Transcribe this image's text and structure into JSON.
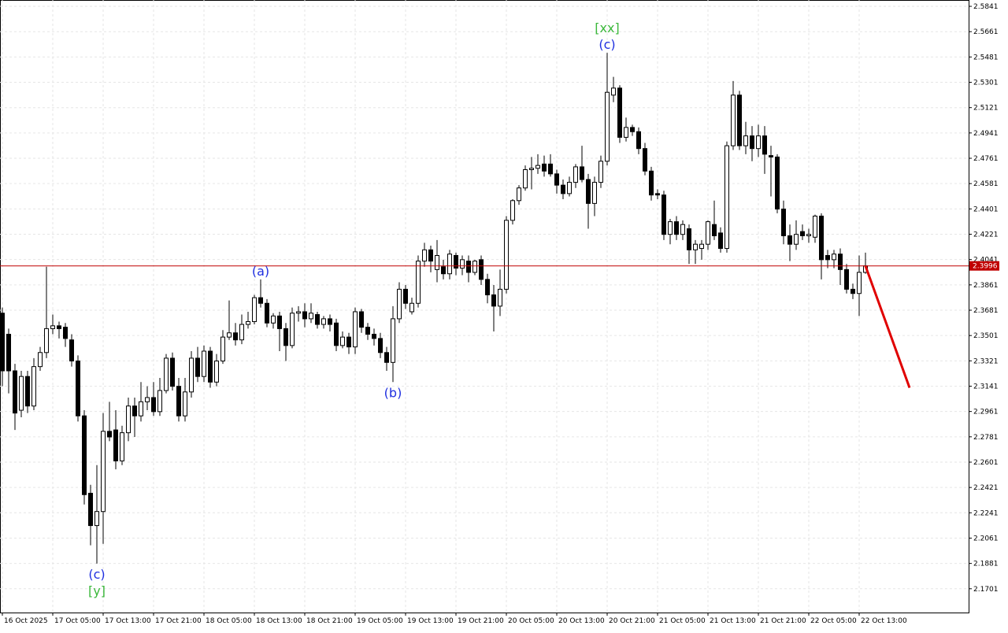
{
  "chart_data": {
    "type": "candlestick",
    "ylim": [
      2.1532,
      2.5886
    ],
    "yticks": [
      2.5841,
      2.5661,
      2.5481,
      2.5301,
      2.5121,
      2.4941,
      2.4761,
      2.4581,
      2.4401,
      2.4221,
      2.4041,
      2.3861,
      2.3681,
      2.3501,
      2.3321,
      2.3141,
      2.2961,
      2.2781,
      2.2601,
      2.2421,
      2.2241,
      2.2061,
      2.1881,
      2.1701
    ],
    "grid": true,
    "xtick_labels": [
      "16 Oct 2025",
      "17 Oct 05:00",
      "17 Oct 13:00",
      "17 Oct 21:00",
      "18 Oct 05:00",
      "18 Oct 13:00",
      "18 Oct 21:00",
      "19 Oct 05:00",
      "19 Oct 13:00",
      "19 Oct 21:00",
      "20 Oct 05:00",
      "20 Oct 13:00",
      "20 Oct 21:00",
      "21 Oct 05:00",
      "21 Oct 13:00",
      "21 Oct 21:00",
      "22 Oct 05:00",
      "22 Oct 13:00"
    ],
    "up_color": "#ffffff",
    "down_color": "#000000",
    "ohlc": [
      [
        2.366,
        2.37,
        2.314,
        2.325
      ],
      [
        2.351,
        2.355,
        2.309,
        2.325
      ],
      [
        2.325,
        2.33,
        2.283,
        2.295
      ],
      [
        2.297,
        2.325,
        2.292,
        2.321
      ],
      [
        2.321,
        2.325,
        2.295,
        2.3
      ],
      [
        2.3,
        2.334,
        2.297,
        2.328
      ],
      [
        2.328,
        2.342,
        2.325,
        2.338
      ],
      [
        2.338,
        2.399,
        2.334,
        2.355
      ],
      [
        2.355,
        2.365,
        2.351,
        2.357
      ],
      [
        2.357,
        2.36,
        2.348,
        2.355
      ],
      [
        2.356,
        2.359,
        2.342,
        2.348
      ],
      [
        2.347,
        2.351,
        2.328,
        2.332
      ],
      [
        2.332,
        2.336,
        2.289,
        2.293
      ],
      [
        2.293,
        2.297,
        2.23,
        2.237
      ],
      [
        2.238,
        2.244,
        2.201,
        2.215
      ],
      [
        2.215,
        2.258,
        2.188,
        2.225
      ],
      [
        2.225,
        2.295,
        2.202,
        2.282
      ],
      [
        2.282,
        2.303,
        2.275,
        2.278
      ],
      [
        2.283,
        2.297,
        2.255,
        2.261
      ],
      [
        2.261,
        2.286,
        2.258,
        2.281
      ],
      [
        2.281,
        2.306,
        2.275,
        2.3
      ],
      [
        2.3,
        2.306,
        2.278,
        2.293
      ],
      [
        2.293,
        2.317,
        2.289,
        2.303
      ],
      [
        2.303,
        2.314,
        2.297,
        2.306
      ],
      [
        2.306,
        2.317,
        2.293,
        2.296
      ],
      [
        2.296,
        2.32,
        2.293,
        2.311
      ],
      [
        2.311,
        2.337,
        2.309,
        2.334
      ],
      [
        2.334,
        2.338,
        2.311,
        2.314
      ],
      [
        2.314,
        2.32,
        2.289,
        2.293
      ],
      [
        2.293,
        2.32,
        2.289,
        2.31
      ],
      [
        2.31,
        2.339,
        2.306,
        2.334
      ],
      [
        2.334,
        2.342,
        2.317,
        2.321
      ],
      [
        2.321,
        2.343,
        2.317,
        2.339
      ],
      [
        2.339,
        2.342,
        2.313,
        2.317
      ],
      [
        2.317,
        2.337,
        2.314,
        2.332
      ],
      [
        2.332,
        2.354,
        2.33,
        2.349
      ],
      [
        2.349,
        2.375,
        2.347,
        2.352
      ],
      [
        2.352,
        2.359,
        2.343,
        2.347
      ],
      [
        2.347,
        2.365,
        2.344,
        2.358
      ],
      [
        2.358,
        2.367,
        2.355,
        2.36
      ],
      [
        2.36,
        2.379,
        2.358,
        2.377
      ],
      [
        2.377,
        2.39,
        2.37,
        2.373
      ],
      [
        2.373,
        2.376,
        2.356,
        2.359
      ],
      [
        2.359,
        2.366,
        2.355,
        2.364
      ],
      [
        2.364,
        2.367,
        2.339,
        2.355
      ],
      [
        2.355,
        2.359,
        2.332,
        2.343
      ],
      [
        2.343,
        2.37,
        2.341,
        2.366
      ],
      [
        2.366,
        2.371,
        2.36,
        2.367
      ],
      [
        2.367,
        2.373,
        2.356,
        2.362
      ],
      [
        2.362,
        2.373,
        2.359,
        2.366
      ],
      [
        2.365,
        2.367,
        2.355,
        2.358
      ],
      [
        2.358,
        2.364,
        2.355,
        2.362
      ],
      [
        2.362,
        2.365,
        2.353,
        2.358
      ],
      [
        2.359,
        2.362,
        2.339,
        2.343
      ],
      [
        2.343,
        2.353,
        2.341,
        2.349
      ],
      [
        2.349,
        2.352,
        2.337,
        2.342
      ],
      [
        2.342,
        2.37,
        2.337,
        2.367
      ],
      [
        2.367,
        2.369,
        2.352,
        2.356
      ],
      [
        2.356,
        2.359,
        2.347,
        2.351
      ],
      [
        2.351,
        2.355,
        2.343,
        2.348
      ],
      [
        2.348,
        2.352,
        2.334,
        2.338
      ],
      [
        2.338,
        2.342,
        2.325,
        2.331
      ],
      [
        2.331,
        2.371,
        2.317,
        2.362
      ],
      [
        2.362,
        2.388,
        2.359,
        2.383
      ],
      [
        2.383,
        2.386,
        2.369,
        2.373
      ],
      [
        2.367,
        2.377,
        2.365,
        2.373
      ],
      [
        2.373,
        2.407,
        2.37,
        2.403
      ],
      [
        2.403,
        2.416,
        2.399,
        2.411
      ],
      [
        2.411,
        2.414,
        2.395,
        2.403
      ],
      [
        2.397,
        2.418,
        2.388,
        2.407
      ],
      [
        2.399,
        2.404,
        2.39,
        2.394
      ],
      [
        2.394,
        2.411,
        2.39,
        2.408
      ],
      [
        2.407,
        2.409,
        2.393,
        2.398
      ],
      [
        2.398,
        2.407,
        2.393,
        2.404
      ],
      [
        2.403,
        2.407,
        2.388,
        2.395
      ],
      [
        2.395,
        2.404,
        2.393,
        2.403
      ],
      [
        2.404,
        2.407,
        2.386,
        2.39
      ],
      [
        2.39,
        2.394,
        2.373,
        2.379
      ],
      [
        2.379,
        2.386,
        2.353,
        2.371
      ],
      [
        2.371,
        2.397,
        2.364,
        2.383
      ],
      [
        2.383,
        2.435,
        2.38,
        2.432
      ],
      [
        2.432,
        2.447,
        2.429,
        2.446
      ],
      [
        2.446,
        2.457,
        2.443,
        2.455
      ],
      [
        2.455,
        2.471,
        2.453,
        2.468
      ],
      [
        2.468,
        2.477,
        2.454,
        2.469
      ],
      [
        2.469,
        2.479,
        2.465,
        2.471
      ],
      [
        2.472,
        2.478,
        2.463,
        2.467
      ],
      [
        2.472,
        2.479,
        2.463,
        2.465
      ],
      [
        2.465,
        2.468,
        2.451,
        2.457
      ],
      [
        2.457,
        2.461,
        2.447,
        2.451
      ],
      [
        2.451,
        2.463,
        2.449,
        2.459
      ],
      [
        2.459,
        2.472,
        2.455,
        2.47
      ],
      [
        2.47,
        2.485,
        2.459,
        2.461
      ],
      [
        2.461,
        2.465,
        2.426,
        2.444
      ],
      [
        2.444,
        2.463,
        2.435,
        2.459
      ],
      [
        2.459,
        2.478,
        2.455,
        2.474
      ],
      [
        2.474,
        2.551,
        2.471,
        2.523
      ],
      [
        2.521,
        2.534,
        2.516,
        2.526
      ],
      [
        2.526,
        2.528,
        2.487,
        2.491
      ],
      [
        2.491,
        2.505,
        2.488,
        2.498
      ],
      [
        2.498,
        2.5,
        2.492,
        2.495
      ],
      [
        2.495,
        2.498,
        2.479,
        2.483
      ],
      [
        2.483,
        2.487,
        2.464,
        2.467
      ],
      [
        2.467,
        2.47,
        2.446,
        2.45
      ],
      [
        2.451,
        2.454,
        2.447,
        2.45
      ],
      [
        2.45,
        2.453,
        2.418,
        2.422
      ],
      [
        2.422,
        2.433,
        2.415,
        2.431
      ],
      [
        2.431,
        2.435,
        2.418,
        2.422
      ],
      [
        2.422,
        2.432,
        2.418,
        2.429
      ],
      [
        2.426,
        2.429,
        2.401,
        2.411
      ],
      [
        2.411,
        2.418,
        2.401,
        2.415
      ],
      [
        2.412,
        2.418,
        2.404,
        2.415
      ],
      [
        2.415,
        2.432,
        2.411,
        2.431
      ],
      [
        2.429,
        2.446,
        2.418,
        2.421
      ],
      [
        2.423,
        2.427,
        2.409,
        2.412
      ],
      [
        2.412,
        2.488,
        2.409,
        2.485
      ],
      [
        2.485,
        2.531,
        2.482,
        2.521
      ],
      [
        2.521,
        2.524,
        2.482,
        2.485
      ],
      [
        2.485,
        2.502,
        2.479,
        2.492
      ],
      [
        2.492,
        2.499,
        2.474,
        2.483
      ],
      [
        2.483,
        2.5,
        2.477,
        2.492
      ],
      [
        2.492,
        2.499,
        2.465,
        2.479
      ],
      [
        2.478,
        2.485,
        2.449,
        2.477
      ],
      [
        2.477,
        2.479,
        2.437,
        2.44
      ],
      [
        2.44,
        2.446,
        2.415,
        2.421
      ],
      [
        2.421,
        2.429,
        2.403,
        2.415
      ],
      [
        2.415,
        2.432,
        2.411,
        2.422
      ],
      [
        2.424,
        2.429,
        2.418,
        2.421
      ],
      [
        2.421,
        2.426,
        2.416,
        2.422
      ],
      [
        2.42,
        2.436,
        2.416,
        2.435
      ],
      [
        2.435,
        2.437,
        2.39,
        2.404
      ],
      [
        2.407,
        2.411,
        2.398,
        2.404
      ],
      [
        2.404,
        2.411,
        2.398,
        2.408
      ],
      [
        2.408,
        2.412,
        2.386,
        2.397
      ],
      [
        2.397,
        2.401,
        2.38,
        2.383
      ],
      [
        2.383,
        2.387,
        2.376,
        2.38
      ],
      [
        2.38,
        2.407,
        2.364,
        2.395
      ],
      [
        2.395,
        2.409,
        2.394,
        2.3996
      ]
    ],
    "price_line": {
      "value": 2.3996,
      "label": "2.3996",
      "color": "#c00000"
    },
    "forecast": {
      "values": [
        2.3996,
        2.313
      ],
      "color": "#e00000"
    },
    "annotations": [
      {
        "text": "(c)",
        "color": "#1f2fe0",
        "candle": 15,
        "position": "below",
        "row": 0
      },
      {
        "text": "[y]",
        "color": "#3cb83c",
        "candle": 15,
        "position": "below",
        "row": 1
      },
      {
        "text": "(a)",
        "color": "#1f2fe0",
        "candle": 41,
        "position": "above",
        "row": 0
      },
      {
        "text": "(b)",
        "color": "#1f2fe0",
        "candle": 62,
        "position": "below",
        "row": 0
      },
      {
        "text": "(c)",
        "color": "#1f2fe0",
        "candle": 96,
        "position": "above",
        "row": 0
      },
      {
        "text": "[xx]",
        "color": "#3cb83c",
        "candle": 96,
        "position": "above",
        "row": 1
      }
    ]
  }
}
